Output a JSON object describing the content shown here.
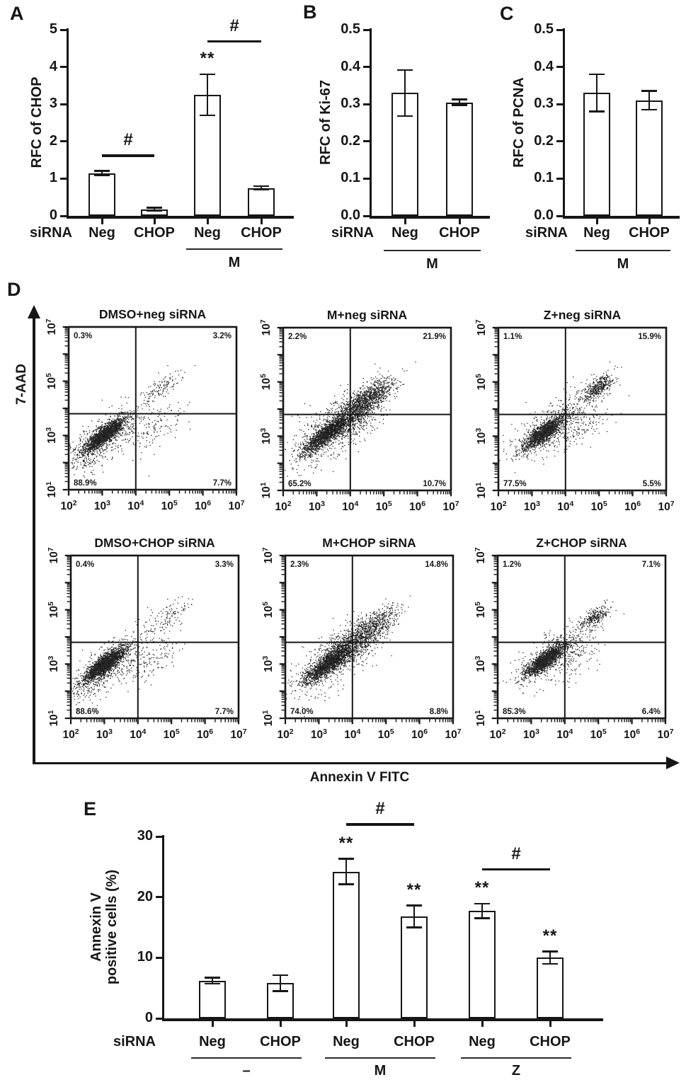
{
  "figure": {
    "panel_labels": [
      "A",
      "B",
      "C",
      "D",
      "E"
    ]
  },
  "chart_data": [
    {
      "id": "A",
      "type": "bar",
      "ylabel": "RFC of CHOP",
      "x_axis_label": "siRNA",
      "ylim": [
        0,
        5
      ],
      "yticks": [
        "0",
        "1",
        "2",
        "3",
        "4",
        "5"
      ],
      "categories": [
        "Neg",
        "CHOP",
        "Neg",
        "CHOP"
      ],
      "values": [
        1.15,
        0.18,
        3.25,
        0.75
      ],
      "errors": [
        0.06,
        0.04,
        0.55,
        0.05
      ],
      "groups": [
        {
          "label": "M",
          "bars": [
            2,
            3
          ]
        }
      ],
      "sig_brackets": [
        {
          "text": "#",
          "bars": [
            0,
            1
          ],
          "y": 1.65
        },
        {
          "text": "#",
          "bars": [
            2,
            3
          ],
          "y": 4.72
        }
      ],
      "sig_stars": [
        {
          "text": "**",
          "bar": 2
        }
      ]
    },
    {
      "id": "B",
      "type": "bar",
      "ylabel": "RFC of Ki-67",
      "x_axis_label": "siRNA",
      "ylim": [
        0,
        0.5
      ],
      "yticks": [
        "0.0",
        "0.1",
        "0.2",
        "0.3",
        "0.4",
        "0.5"
      ],
      "categories": [
        "Neg",
        "CHOP"
      ],
      "values": [
        0.33,
        0.305
      ],
      "errors": [
        0.062,
        0.008
      ],
      "groups": [
        {
          "label": "M",
          "bars": [
            0,
            1
          ]
        }
      ],
      "sig_brackets": [],
      "sig_stars": []
    },
    {
      "id": "C",
      "type": "bar",
      "ylabel": "RFC of PCNA",
      "x_axis_label": "siRNA",
      "ylim": [
        0,
        0.5
      ],
      "yticks": [
        "0.0",
        "0.1",
        "0.2",
        "0.3",
        "0.4",
        "0.5"
      ],
      "categories": [
        "Neg",
        "CHOP"
      ],
      "values": [
        0.33,
        0.31
      ],
      "errors": [
        0.05,
        0.025
      ],
      "groups": [
        {
          "label": "M",
          "bars": [
            0,
            1
          ]
        }
      ],
      "sig_brackets": [],
      "sig_stars": []
    },
    {
      "id": "D",
      "type": "scatter-flow",
      "xlabel": "Annexin V FITC",
      "ylabel": "7-AAD",
      "x_log_range": [
        2,
        7
      ],
      "y_log_range": [
        1,
        7
      ],
      "quadrant_divider_x": 4,
      "quadrant_divider_y": 3.8,
      "x_tick_exponents": [
        2,
        3,
        4,
        5,
        6,
        7
      ],
      "y_tick_exponents": [
        1,
        3,
        5,
        7
      ],
      "plots": [
        {
          "title": "DMSO+neg siRNA",
          "quadrants": {
            "upper_left": "0.3%",
            "upper_right": "3.2%",
            "lower_left": "88.9%",
            "lower_right": "7.7%"
          },
          "clusters": [
            [
              3.08,
              3.02,
              0.4,
              0.115,
              2000
            ],
            [
              3.2,
              3.05,
              0.75,
              0.3,
              420
            ],
            [
              4.75,
              4.72,
              0.45,
              0.16,
              130
            ],
            [
              4.45,
              3.2,
              0.55,
              0.33,
              150
            ],
            [
              2.6,
              2.25,
              0.5,
              0.3,
              120
            ]
          ]
        },
        {
          "title": "M+neg siRNA",
          "quadrants": {
            "upper_left": "2.2%",
            "upper_right": "21.9%",
            "lower_left": "65.2%",
            "lower_right": "10.7%"
          },
          "clusters": [
            [
              3.25,
              3.02,
              0.45,
              0.13,
              1500
            ],
            [
              4.55,
              4.38,
              0.5,
              0.2,
              1000
            ],
            [
              3.9,
              3.62,
              0.5,
              0.28,
              700
            ],
            [
              3.5,
              3.2,
              0.95,
              0.4,
              520
            ]
          ]
        },
        {
          "title": "Z+neg siRNA",
          "quadrants": {
            "upper_left": "1.1%",
            "upper_right": "15.9%",
            "lower_left": "77.5%",
            "lower_right": "5.5%"
          },
          "clusters": [
            [
              3.35,
              3.12,
              0.42,
              0.12,
              1600
            ],
            [
              4.98,
              4.8,
              0.33,
              0.14,
              430
            ],
            [
              3.7,
              3.4,
              0.85,
              0.38,
              430
            ],
            [
              4.4,
              3.3,
              0.5,
              0.3,
              130
            ]
          ]
        },
        {
          "title": "DMSO+CHOP siRNA",
          "quadrants": {
            "upper_left": "0.4%",
            "upper_right": "3.3%",
            "lower_left": "88.6%",
            "lower_right": "7.7%"
          },
          "clusters": [
            [
              3.02,
              3.0,
              0.42,
              0.12,
              2100
            ],
            [
              3.2,
              3.0,
              0.75,
              0.3,
              430
            ],
            [
              4.8,
              4.7,
              0.5,
              0.18,
              120
            ],
            [
              4.4,
              3.2,
              0.55,
              0.33,
              150
            ],
            [
              2.6,
              2.25,
              0.5,
              0.3,
              130
            ]
          ]
        },
        {
          "title": "M+CHOP siRNA",
          "quadrants": {
            "upper_left": "2.3%",
            "upper_right": "14.8%",
            "lower_left": "74.0%",
            "lower_right": "8.8%"
          },
          "clusters": [
            [
              3.28,
              3.0,
              0.5,
              0.14,
              1700
            ],
            [
              4.6,
              4.35,
              0.5,
              0.2,
              680
            ],
            [
              3.9,
              3.6,
              0.5,
              0.28,
              560
            ],
            [
              3.5,
              3.2,
              0.95,
              0.4,
              470
            ]
          ]
        },
        {
          "title": "Z+CHOP siRNA",
          "quadrants": {
            "upper_left": "1.2%",
            "upper_right": "7.1%",
            "lower_left": "85.3%",
            "lower_right": "6.4%"
          },
          "clusters": [
            [
              3.42,
              3.15,
              0.4,
              0.12,
              1700
            ],
            [
              4.88,
              4.72,
              0.3,
              0.13,
              270
            ],
            [
              3.7,
              3.4,
              0.8,
              0.35,
              390
            ],
            [
              4.3,
              3.2,
              0.45,
              0.28,
              110
            ]
          ]
        }
      ]
    },
    {
      "id": "E",
      "type": "bar",
      "ylabel_lines": [
        "Annexin V",
        "positive cells (%)"
      ],
      "x_axis_label": "siRNA",
      "ylim": [
        0,
        30
      ],
      "yticks": [
        "0",
        "10",
        "20",
        "30"
      ],
      "categories": [
        "Neg",
        "CHOP",
        "Neg",
        "CHOP",
        "Neg",
        "CHOP"
      ],
      "values": [
        6.2,
        5.8,
        24.2,
        16.8,
        17.7,
        10.0
      ],
      "errors": [
        0.5,
        1.3,
        2.1,
        1.8,
        1.2,
        1.0
      ],
      "groups": [
        {
          "label": "–",
          "bars": [
            0,
            1
          ]
        },
        {
          "label": "M",
          "bars": [
            2,
            3
          ]
        },
        {
          "label": "Z",
          "bars": [
            4,
            5
          ]
        }
      ],
      "sig_brackets": [
        {
          "text": "#",
          "bars": [
            2,
            3
          ],
          "y": 32.2
        },
        {
          "text": "#",
          "bars": [
            4,
            5
          ],
          "y": 24.8
        }
      ],
      "sig_stars": [
        {
          "text": "**",
          "bar": 2
        },
        {
          "text": "**",
          "bar": 3
        },
        {
          "text": "**",
          "bar": 4
        },
        {
          "text": "**",
          "bar": 5
        }
      ]
    }
  ]
}
